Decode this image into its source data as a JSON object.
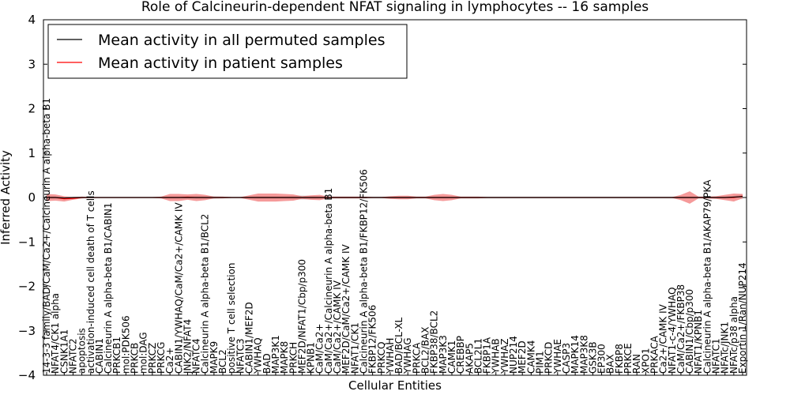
{
  "chart_data": {
    "type": "line",
    "title": "Role of Calcineurin-dependent NFAT signaling in lymphocytes -- 16 samples",
    "xlabel": "Cellular Entities",
    "ylabel": "Inferred Activity",
    "ylim": [
      -4,
      4
    ],
    "yticks": [
      -4,
      -3,
      -2,
      -1,
      0,
      1,
      2,
      3,
      4
    ],
    "legend_position": "top-left",
    "colors": {
      "permuted": "#000000",
      "patient": "#ff0000",
      "patient_band": "#ef6464",
      "permuted_band": "#bbbbbb"
    },
    "categories": [
      "14-3-3 family/BAD/CaM/Ca2+/Calcineurin A alpha-beta B1",
      "NFAT4/CK1 alpha",
      "CSNK1A1",
      "NFATC2",
      "apoptosis",
      "activation-induced cell death of T cells",
      "CABIN1",
      "Calcineurin A alpha-beta B1/CABIN1",
      "PRKCB1",
      "mol:PDK506",
      "PRKCB",
      "mol:DAG",
      "PRKCZ",
      "PRKCG",
      "Ca2+",
      "CABIN1/YWHAQ/CaM/Ca2+/CAMK IV",
      "JNK2/NFAT4",
      "NFATC4",
      "Calcineurin A alpha-beta B1/BCL2",
      "MAPK9",
      "BCL2",
      "positive T cell selection",
      "NFATC3",
      "CABIN1/MEF2D",
      "YWHAQ",
      "BAD",
      "MAP3K1",
      "MAPK8",
      "PRKCH",
      "MEF2D/NFAT1/Cbp/p300",
      "KPNB1",
      "CaM/Ca2+",
      "CaM/Ca2+/Calcineurin A alpha-beta B1",
      "CaM/Ca2+/CAMK IV",
      "MEF2D/CaM/Ca2+/CAMK IV",
      "NFAT1/CK1",
      "Calcineurin A alpha-beta B1/FKBP12/FK506",
      "FKBP12/FK506",
      "PRKCQ",
      "YWHAH",
      "BAD/BCL-XL",
      "YWHAG",
      "PRKCA",
      "BCL2/BAX",
      "FKBP38/BCL2",
      "MAP3K3",
      "CAMK1",
      "CREBBP",
      "AKAP5",
      "BCL2L1",
      "FKBP1A",
      "YWHAB",
      "YWHAZ",
      "NUP214",
      "MEF2D",
      "CAMK4",
      "PIM1",
      "PRKCD",
      "YWHAE",
      "CASP3",
      "MAPK14",
      "MAP3K8",
      "GSK3B",
      "EP300",
      "BAX",
      "FKBP8",
      "PRKCE",
      "RAN",
      "XPO1",
      "PRKACA",
      "Ca2+/CAMK IV",
      "NFAT1-c-4/YWHAQ",
      "CaM/Ca2+/FKBP38",
      "CABIN1/Cbp/p300",
      "NFAT1/KPNB1",
      "Calcineurin A alpha-beta B1/AKAP79/PKA",
      "NFATC1",
      "NFATc/JNK1",
      "NFATc/p38 alpha",
      "Exportin 1/Ran/NUP214"
    ],
    "series": [
      {
        "name": "Mean activity in all permuted samples",
        "values": [
          0.0,
          0.0,
          -0.01,
          0.0,
          0.0,
          0.0,
          0.0,
          0.0,
          0.0,
          0.0,
          0.0,
          0.0,
          0.0,
          0.0,
          0.0,
          0.0,
          0.0,
          0.0,
          0.0,
          0.0,
          0.0,
          0.0,
          0.0,
          0.0,
          0.0,
          0.0,
          0.0,
          0.0,
          0.0,
          0.0,
          0.0,
          0.0,
          0.0,
          0.0,
          0.0,
          0.0,
          0.0,
          0.0,
          0.0,
          0.0,
          0.0,
          0.0,
          0.0,
          0.0,
          0.0,
          0.0,
          0.0,
          0.0,
          0.0,
          0.0,
          0.0,
          0.0,
          0.0,
          0.0,
          0.0,
          0.0,
          0.0,
          0.0,
          0.0,
          0.0,
          0.0,
          0.0,
          0.0,
          0.0,
          0.0,
          0.0,
          0.0,
          0.0,
          0.0,
          0.0,
          0.0,
          0.0,
          0.0,
          0.0,
          0.0,
          0.0,
          0.0,
          0.0,
          0.01,
          0.02
        ]
      },
      {
        "name": "Mean activity in patient samples",
        "values": [
          0.0,
          0.0,
          -0.03,
          -0.02,
          0.0,
          0.0,
          0.0,
          0.0,
          0.0,
          0.0,
          0.0,
          0.0,
          0.0,
          0.0,
          0.0,
          0.0,
          0.01,
          0.0,
          0.0,
          0.0,
          0.0,
          0.0,
          0.0,
          0.0,
          0.0,
          0.0,
          0.0,
          0.0,
          0.0,
          0.0,
          0.0,
          0.0,
          0.0,
          0.0,
          0.0,
          0.0,
          0.0,
          0.0,
          0.0,
          0.0,
          0.0,
          0.0,
          0.0,
          0.0,
          0.0,
          0.0,
          0.0,
          0.0,
          0.0,
          0.0,
          0.0,
          0.0,
          0.0,
          0.0,
          0.0,
          0.0,
          0.0,
          0.0,
          0.0,
          0.0,
          0.0,
          0.0,
          0.0,
          0.0,
          0.0,
          0.0,
          0.0,
          0.0,
          0.0,
          0.0,
          0.0,
          0.0,
          0.0,
          0.0,
          0.0,
          0.0,
          0.0,
          0.0,
          0.0,
          0.03
        ]
      }
    ],
    "patient_spread": [
      0.08,
      0.07,
      0.06,
      0.03,
      0.02,
      0.01,
      0.01,
      0.01,
      0.01,
      0.01,
      0.01,
      0.01,
      0.01,
      0.02,
      0.08,
      0.08,
      0.06,
      0.08,
      0.06,
      0.02,
      0.02,
      0.01,
      0.01,
      0.05,
      0.09,
      0.09,
      0.09,
      0.08,
      0.07,
      0.03,
      0.05,
      0.06,
      0.02,
      0.02,
      0.02,
      0.02,
      0.02,
      0.01,
      0.01,
      0.03,
      0.04,
      0.04,
      0.02,
      0.02,
      0.06,
      0.08,
      0.06,
      0.02,
      0.02,
      0.02,
      0.01,
      0.01,
      0.01,
      0.01,
      0.01,
      0.01,
      0.01,
      0.01,
      0.01,
      0.01,
      0.01,
      0.01,
      0.01,
      0.01,
      0.01,
      0.01,
      0.01,
      0.01,
      0.01,
      0.01,
      0.01,
      0.01,
      0.06,
      0.14,
      0.02,
      0.02,
      0.03,
      0.06,
      0.09,
      0.05
    ],
    "permuted_spread": [
      0.03,
      0.03,
      0.02,
      0.01,
      0.02,
      0.01,
      0.01,
      0.01,
      0.01,
      0.01,
      0.01,
      0.01,
      0.01,
      0.01,
      0.02,
      0.02,
      0.02,
      0.03,
      0.03,
      0.03,
      0.02,
      0.01,
      0.01,
      0.02,
      0.03,
      0.03,
      0.03,
      0.03,
      0.04,
      0.05,
      0.04,
      0.03,
      0.02,
      0.02,
      0.02,
      0.02,
      0.02,
      0.02,
      0.02,
      0.02,
      0.02,
      0.02,
      0.02,
      0.02,
      0.02,
      0.02,
      0.02,
      0.02,
      0.02,
      0.02,
      0.02,
      0.02,
      0.02,
      0.02,
      0.02,
      0.02,
      0.02,
      0.02,
      0.02,
      0.02,
      0.02,
      0.02,
      0.02,
      0.02,
      0.02,
      0.02,
      0.02,
      0.02,
      0.02,
      0.02,
      0.02,
      0.02,
      0.02,
      0.02,
      0.02,
      0.02,
      0.02,
      0.02,
      0.03,
      0.06
    ]
  }
}
